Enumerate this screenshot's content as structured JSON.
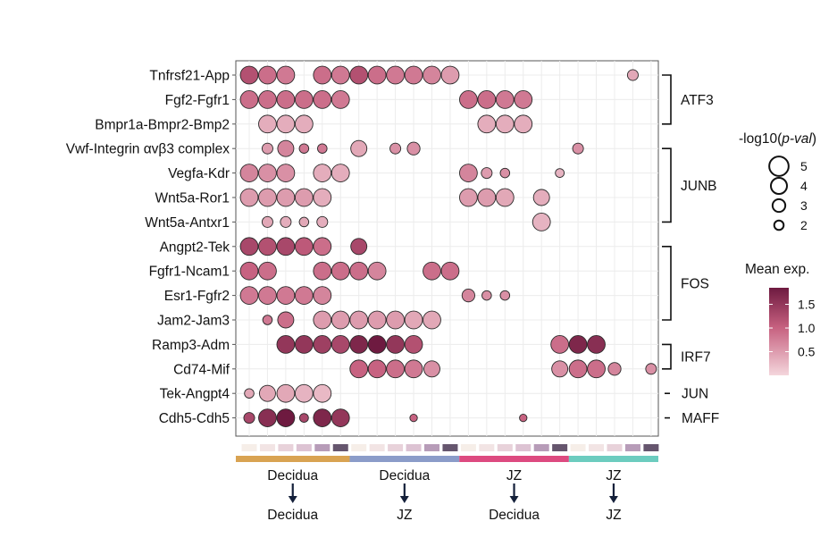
{
  "chart_data": {
    "type": "dotplot",
    "title": "",
    "rows": [
      "Tnfrsf21-App",
      "Fgf2-Fgfr1",
      "Bmpr1a-Bmpr2-Bmp2",
      "Vwf-Integrin αvβ3 complex",
      "Vegfa-Kdr",
      "Wnt5a-Ror1",
      "Wnt5a-Antxr1",
      "Angpt2-Tek",
      "Fgfr1-Ncam1",
      "Esr1-Fgfr2",
      "Jam2-Jam3",
      "Ramp3-Adm",
      "Cd74-Mif",
      "Tek-Angpt4",
      "Cdh5-Cdh5"
    ],
    "n_columns": 23,
    "column_colors": [
      "#f6eee8",
      "#f2e4e4",
      "#e8d2da",
      "#ddc3d3",
      "#b79cb8",
      "#66566e",
      "#f6eee8",
      "#f2e4e4",
      "#e8d2da",
      "#ddc3d3",
      "#b79cb8",
      "#66566e",
      "#f6eee8",
      "#f2e4e4",
      "#e8d2da",
      "#ddc3d3",
      "#b79cb8",
      "#66566e",
      "#f6eee8",
      "#f2e4e4",
      "#e8d2da",
      "#b79cb8",
      "#66566e"
    ],
    "groups": [
      {
        "from": "Decidua",
        "to": "Decidua",
        "color": "#d9a352",
        "start": 0,
        "end": 5
      },
      {
        "from": "Decidua",
        "to": "JZ",
        "color": "#8b9cc9",
        "start": 6,
        "end": 11
      },
      {
        "from": "JZ",
        "to": "Decidua",
        "color": "#dd4a80",
        "start": 12,
        "end": 17
      },
      {
        "from": "JZ",
        "to": "JZ",
        "color": "#6cccbf",
        "start": 18,
        "end": 22
      }
    ],
    "tf_annotations": [
      {
        "label": "ATF3",
        "first_row": 0,
        "last_row": 2
      },
      {
        "label": "JUNB",
        "first_row": 3,
        "last_row": 6
      },
      {
        "label": "FOS",
        "first_row": 7,
        "last_row": 10
      },
      {
        "label": "IRF7",
        "first_row": 11,
        "last_row": 12
      },
      {
        "label": "JUN",
        "first_row": 13,
        "last_row": 13
      },
      {
        "label": "MAFF",
        "first_row": 14,
        "last_row": 14
      }
    ],
    "size_legend": {
      "title_prefix": "-log10(",
      "title_var": "p-val",
      "title_suffix": ")",
      "values": [
        5,
        4,
        3,
        2
      ]
    },
    "color_legend": {
      "title": "Mean exp.",
      "ticks": [
        1.5,
        1.0,
        0.5
      ],
      "tick_labels": [
        "1.5",
        "1.0",
        "0.5"
      ],
      "range": [
        0.0,
        1.85
      ],
      "low_color": "#f4d6dc",
      "high_color": "#6e1a40"
    },
    "points": [
      [
        0,
        0,
        4.5,
        1.2
      ],
      [
        0,
        1,
        4.5,
        0.9
      ],
      [
        0,
        2,
        4.5,
        0.8
      ],
      [
        0,
        4,
        4.5,
        0.9
      ],
      [
        0,
        5,
        4.5,
        0.8
      ],
      [
        0,
        6,
        4.5,
        1.2
      ],
      [
        0,
        7,
        4.5,
        0.9
      ],
      [
        0,
        8,
        4.5,
        0.8
      ],
      [
        0,
        9,
        4.5,
        0.8
      ],
      [
        0,
        10,
        4.5,
        0.7
      ],
      [
        0,
        11,
        4.5,
        0.5
      ],
      [
        0,
        21,
        2.4,
        0.4
      ],
      [
        1,
        0,
        4.5,
        0.9
      ],
      [
        1,
        1,
        4.5,
        0.9
      ],
      [
        1,
        2,
        4.5,
        0.9
      ],
      [
        1,
        3,
        4.5,
        0.9
      ],
      [
        1,
        4,
        4.5,
        0.9
      ],
      [
        1,
        5,
        4.5,
        0.8
      ],
      [
        1,
        12,
        4.5,
        0.9
      ],
      [
        1,
        13,
        4.5,
        0.9
      ],
      [
        1,
        14,
        4.5,
        0.8
      ],
      [
        1,
        15,
        4.5,
        0.8
      ],
      [
        2,
        1,
        4.5,
        0.35
      ],
      [
        2,
        2,
        4.5,
        0.35
      ],
      [
        2,
        3,
        4.5,
        0.35
      ],
      [
        2,
        13,
        4.5,
        0.35
      ],
      [
        2,
        14,
        4.5,
        0.35
      ],
      [
        2,
        15,
        4.5,
        0.35
      ],
      [
        3,
        1,
        2.4,
        0.5
      ],
      [
        3,
        2,
        4,
        0.7
      ],
      [
        3,
        3,
        2,
        0.8
      ],
      [
        3,
        4,
        2,
        0.8
      ],
      [
        3,
        6,
        4,
        0.4
      ],
      [
        3,
        8,
        2.4,
        0.6
      ],
      [
        3,
        9,
        3,
        0.6
      ],
      [
        3,
        18,
        2.4,
        0.6
      ],
      [
        4,
        0,
        4.5,
        0.7
      ],
      [
        4,
        1,
        4.5,
        0.6
      ],
      [
        4,
        2,
        4.5,
        0.6
      ],
      [
        4,
        4,
        4.5,
        0.35
      ],
      [
        4,
        5,
        4.5,
        0.35
      ],
      [
        4,
        12,
        4.5,
        0.7
      ],
      [
        4,
        13,
        2.4,
        0.5
      ],
      [
        4,
        14,
        2,
        0.6
      ],
      [
        4,
        17,
        1.8,
        0.3
      ],
      [
        5,
        0,
        4.5,
        0.5
      ],
      [
        5,
        1,
        4.5,
        0.5
      ],
      [
        5,
        2,
        4.5,
        0.5
      ],
      [
        5,
        3,
        4.5,
        0.5
      ],
      [
        5,
        4,
        4.5,
        0.35
      ],
      [
        5,
        12,
        4.5,
        0.5
      ],
      [
        5,
        13,
        4.5,
        0.5
      ],
      [
        5,
        14,
        4.5,
        0.4
      ],
      [
        5,
        16,
        4,
        0.35
      ],
      [
        6,
        1,
        2.4,
        0.4
      ],
      [
        6,
        2,
        2.4,
        0.35
      ],
      [
        6,
        3,
        2,
        0.4
      ],
      [
        6,
        4,
        2.4,
        0.35
      ],
      [
        6,
        16,
        4.5,
        0.3
      ],
      [
        7,
        0,
        4.5,
        1.3
      ],
      [
        7,
        1,
        4.5,
        1.2
      ],
      [
        7,
        2,
        4.5,
        1.3
      ],
      [
        7,
        3,
        4.5,
        1.1
      ],
      [
        7,
        4,
        4.5,
        0.9
      ],
      [
        7,
        6,
        4,
        1.3
      ],
      [
        8,
        0,
        4.5,
        1.0
      ],
      [
        8,
        1,
        4.5,
        0.9
      ],
      [
        8,
        4,
        4.5,
        0.9
      ],
      [
        8,
        5,
        4.5,
        0.9
      ],
      [
        8,
        6,
        4.5,
        0.9
      ],
      [
        8,
        7,
        4.5,
        0.7
      ],
      [
        8,
        10,
        4.5,
        0.9
      ],
      [
        8,
        11,
        4.5,
        0.9
      ],
      [
        9,
        0,
        4.5,
        0.8
      ],
      [
        9,
        1,
        4.5,
        0.8
      ],
      [
        9,
        2,
        4.5,
        0.8
      ],
      [
        9,
        3,
        4.5,
        0.8
      ],
      [
        9,
        4,
        4.5,
        0.7
      ],
      [
        9,
        12,
        3,
        0.7
      ],
      [
        9,
        13,
        2,
        0.6
      ],
      [
        9,
        14,
        2,
        0.6
      ],
      [
        10,
        1,
        2,
        0.8
      ],
      [
        10,
        2,
        4,
        0.9
      ],
      [
        10,
        4,
        4.5,
        0.5
      ],
      [
        10,
        5,
        4.5,
        0.5
      ],
      [
        10,
        6,
        4.5,
        0.5
      ],
      [
        10,
        7,
        4.5,
        0.5
      ],
      [
        10,
        8,
        4.5,
        0.5
      ],
      [
        10,
        9,
        4.5,
        0.4
      ],
      [
        10,
        10,
        4.5,
        0.4
      ],
      [
        11,
        2,
        4.5,
        1.5
      ],
      [
        11,
        3,
        4.5,
        1.5
      ],
      [
        11,
        4,
        4.5,
        1.4
      ],
      [
        11,
        5,
        4.5,
        1.3
      ],
      [
        11,
        6,
        4.5,
        1.7
      ],
      [
        11,
        7,
        4.5,
        1.85
      ],
      [
        11,
        8,
        4.5,
        1.5
      ],
      [
        11,
        9,
        4.5,
        1.2
      ],
      [
        11,
        17,
        4.5,
        0.9
      ],
      [
        11,
        18,
        4.5,
        1.7
      ],
      [
        11,
        19,
        4.5,
        1.6
      ],
      [
        12,
        6,
        4.5,
        1.0
      ],
      [
        12,
        7,
        4.5,
        1.0
      ],
      [
        12,
        8,
        4.5,
        0.9
      ],
      [
        12,
        9,
        4.5,
        0.8
      ],
      [
        12,
        10,
        4,
        0.6
      ],
      [
        12,
        17,
        4,
        0.6
      ],
      [
        12,
        18,
        4.5,
        0.9
      ],
      [
        12,
        19,
        4.5,
        0.9
      ],
      [
        12,
        20,
        3,
        0.7
      ],
      [
        12,
        22,
        2.4,
        0.6
      ],
      [
        13,
        0,
        2,
        0.4
      ],
      [
        13,
        1,
        4,
        0.4
      ],
      [
        13,
        2,
        4.5,
        0.4
      ],
      [
        13,
        3,
        4.5,
        0.3
      ],
      [
        13,
        4,
        4.5,
        0.25
      ],
      [
        14,
        0,
        2.4,
        1.3
      ],
      [
        14,
        1,
        4.5,
        1.6
      ],
      [
        14,
        2,
        4.5,
        1.85
      ],
      [
        14,
        3,
        1.8,
        1.3
      ],
      [
        14,
        4,
        4.5,
        1.7
      ],
      [
        14,
        5,
        4.5,
        1.5
      ],
      [
        14,
        9,
        1.4,
        1.0
      ],
      [
        14,
        15,
        1.4,
        1.0
      ]
    ]
  }
}
